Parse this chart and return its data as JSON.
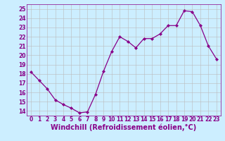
{
  "x": [
    0,
    1,
    2,
    3,
    4,
    5,
    6,
    7,
    8,
    9,
    10,
    11,
    12,
    13,
    14,
    15,
    16,
    17,
    18,
    19,
    20,
    21,
    22,
    23
  ],
  "y": [
    18.2,
    17.3,
    16.4,
    15.2,
    14.7,
    14.3,
    13.8,
    13.9,
    15.8,
    18.3,
    20.4,
    22.0,
    21.5,
    20.8,
    21.8,
    21.8,
    22.3,
    23.2,
    23.2,
    24.8,
    24.7,
    23.2,
    21.0,
    19.6
  ],
  "line_color": "#880088",
  "marker_color": "#880088",
  "bg_color": "#cceeff",
  "grid_color": "#bbbbbb",
  "xlabel": "Windchill (Refroidissement éolien,°C)",
  "text_color": "#880088",
  "ylim": [
    13.5,
    25.5
  ],
  "yticks": [
    14,
    15,
    16,
    17,
    18,
    19,
    20,
    21,
    22,
    23,
    24,
    25
  ],
  "xticks": [
    0,
    1,
    2,
    3,
    4,
    5,
    6,
    7,
    8,
    9,
    10,
    11,
    12,
    13,
    14,
    15,
    16,
    17,
    18,
    19,
    20,
    21,
    22,
    23
  ],
  "tick_fontsize": 5.5,
  "label_fontsize": 7.0
}
